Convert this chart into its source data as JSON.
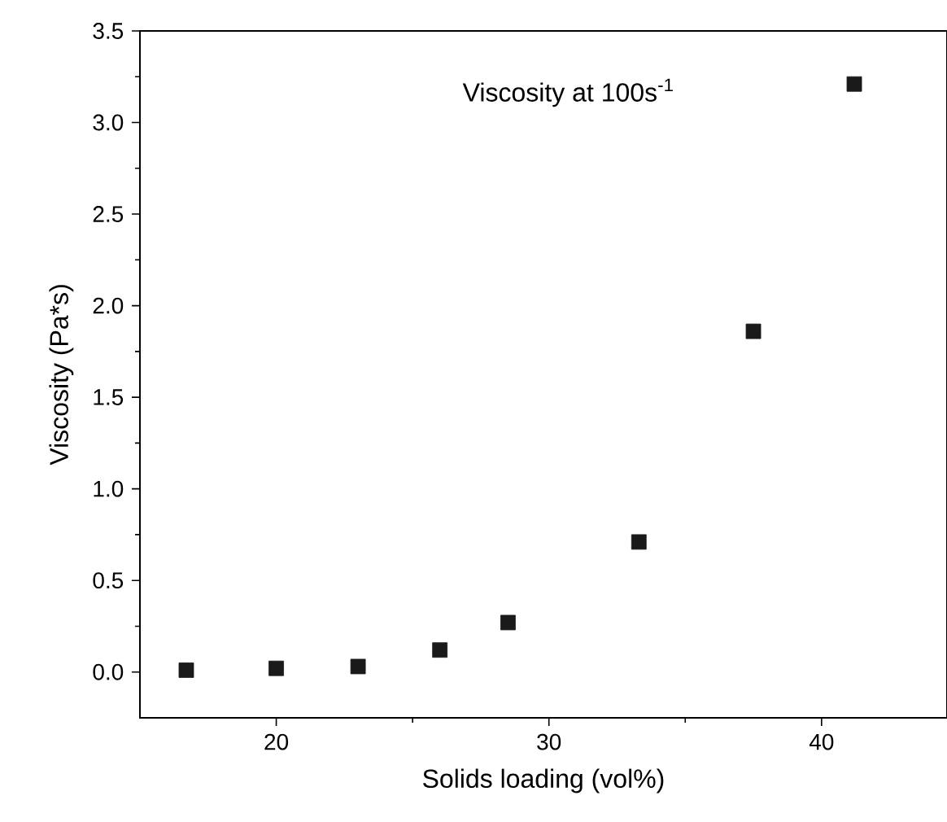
{
  "chart_data": {
    "type": "scatter",
    "xlabel": "Solids loading (vol%)",
    "ylabel": "Viscosity (Pa*s)",
    "annotations": [
      "Viscosity at 100s$^{-1}$"
    ],
    "x": [
      16.7,
      20.0,
      23.0,
      26.0,
      28.5,
      33.3,
      37.5,
      41.2
    ],
    "values": [
      0.01,
      0.02,
      0.03,
      0.12,
      0.27,
      0.71,
      1.86,
      3.21
    ],
    "color": "#1a1a1a",
    "marker": "square",
    "grid": false,
    "xlim": [
      15.0,
      44.6
    ],
    "xticks": [
      20,
      30,
      40
    ],
    "ylim": [
      -0.25,
      3.5
    ],
    "yticks": [
      {
        "value": 0,
        "label": "0.0"
      },
      {
        "value": 0.5,
        "label": "0.5"
      },
      {
        "value": 1,
        "label": "1.0"
      },
      {
        "value": 1.5,
        "label": "1.5"
      },
      {
        "value": 2,
        "label": "2.0"
      },
      {
        "value": 2.5,
        "label": "2.5"
      },
      {
        "value": 3,
        "label": "3.0"
      },
      {
        "value": 3.5,
        "label": "3.5"
      }
    ]
  }
}
